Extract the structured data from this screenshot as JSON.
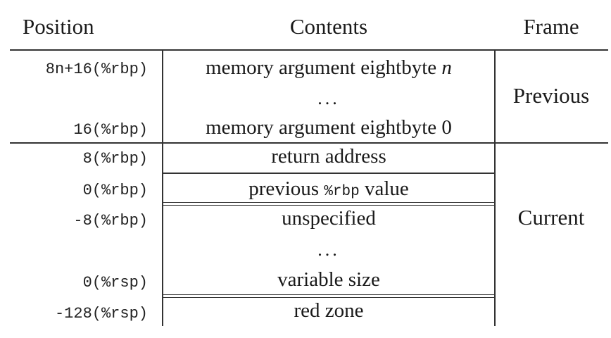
{
  "table": {
    "headers": {
      "position": "Position",
      "contents": "Contents",
      "frame": "Frame"
    },
    "rows": [
      {
        "position": "8n+16(%rbp)",
        "contents_text": "memory argument eightbyte ",
        "contents_var": "n"
      },
      {
        "position": "16(%rbp)",
        "contents": "memory argument eightbyte 0"
      },
      {
        "position": "8(%rbp)",
        "contents": "return address"
      },
      {
        "position": "0(%rbp)",
        "contents_pre": "previous ",
        "contents_code": "%rbp",
        "contents_post": " value"
      },
      {
        "position": "-8(%rbp)",
        "contents": "unspecified"
      },
      {
        "position": "0(%rsp)",
        "contents": "variable size"
      },
      {
        "position": "-128(%rsp)",
        "contents": "red zone"
      }
    ],
    "ellipsis": "...",
    "frames": {
      "previous": "Previous",
      "current": "Current"
    }
  }
}
